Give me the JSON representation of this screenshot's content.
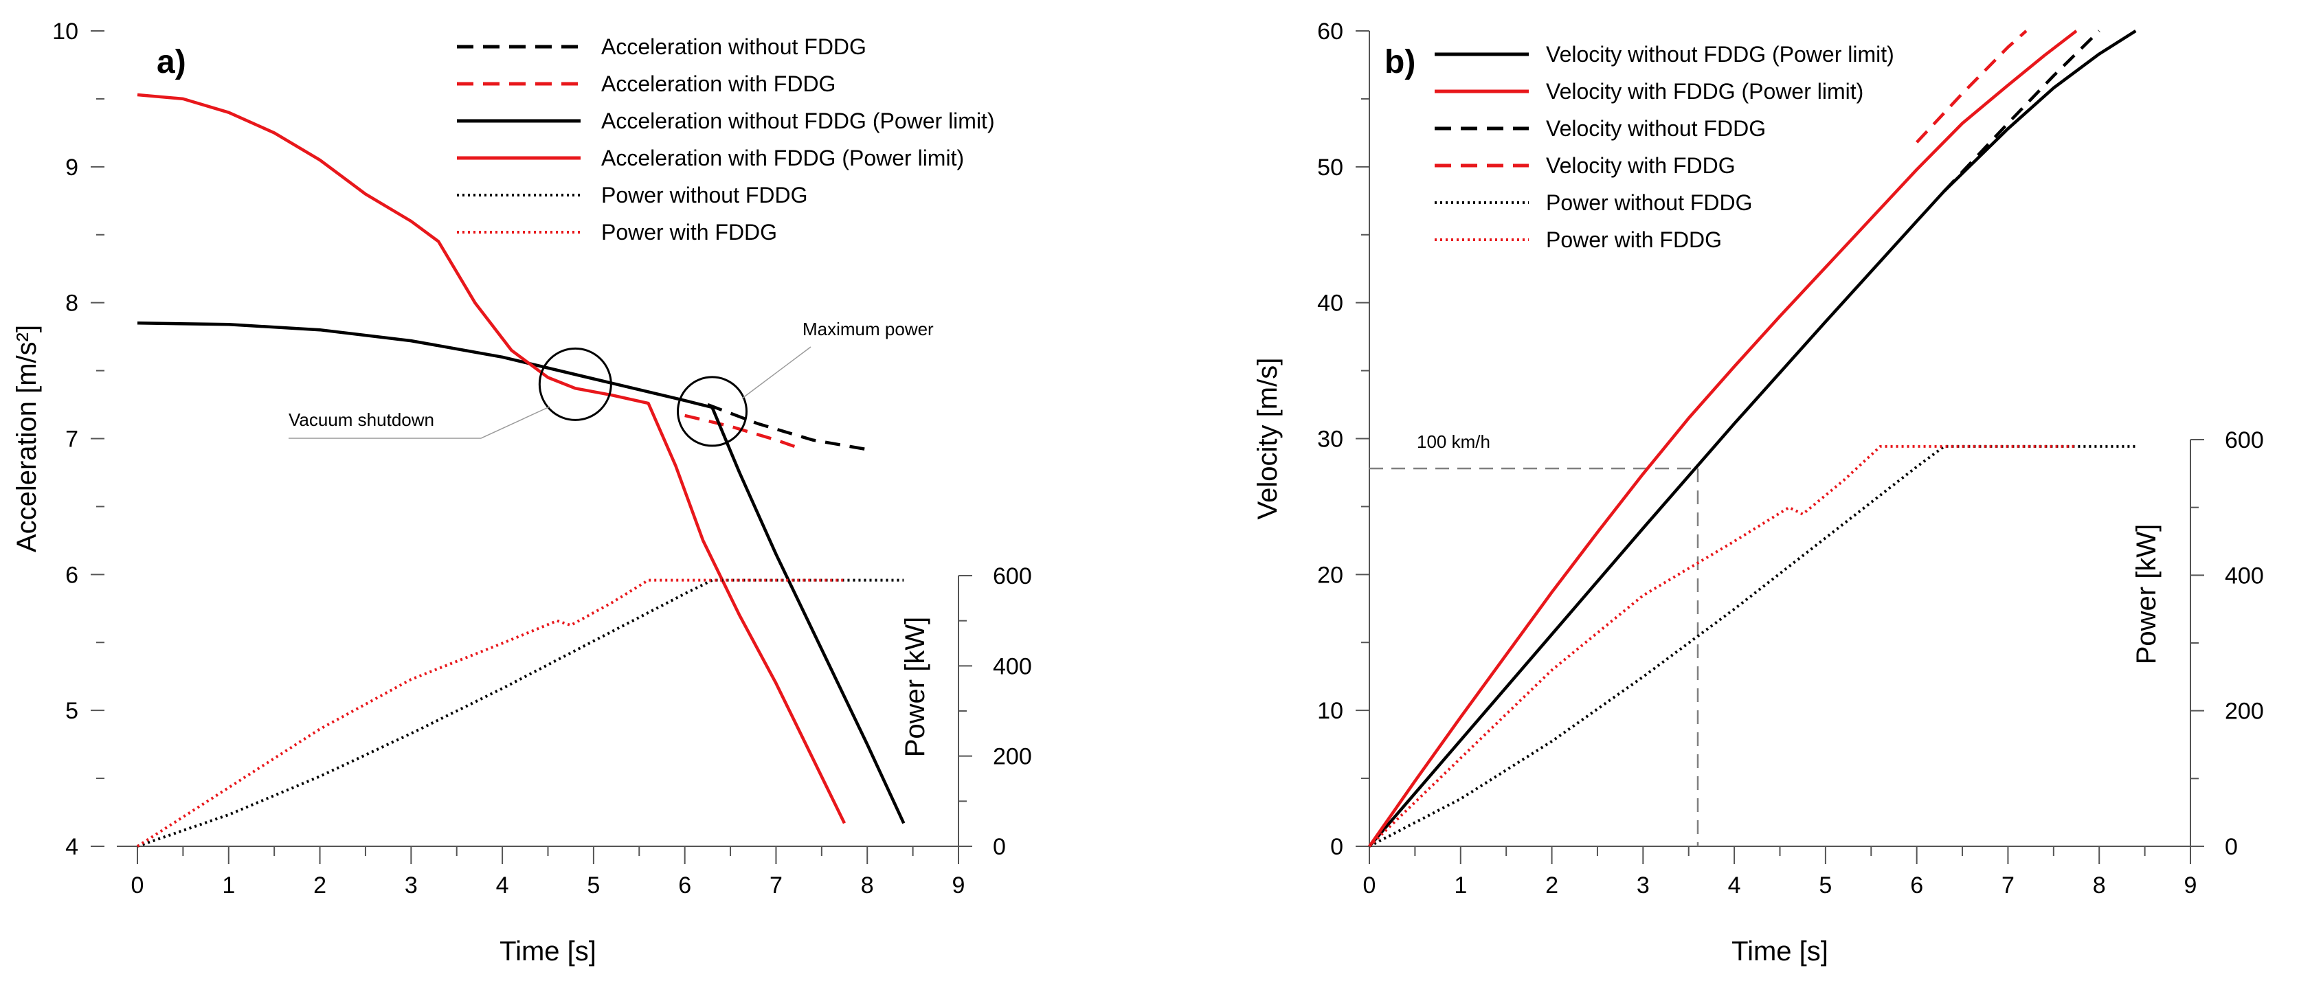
{
  "colors": {
    "black": "#000000",
    "red": "#e8171b",
    "guide": "#808080"
  },
  "chart_data": [
    {
      "id": "a",
      "type": "line",
      "panel_label": "a)",
      "xlabel": "Time [s]",
      "ylabel": "Acceleration [m/s²]",
      "y2label": "Power [kW]",
      "xlim": [
        0,
        9
      ],
      "ylim": [
        4,
        10
      ],
      "y2lim": [
        0,
        600
      ],
      "xticks": [
        "0",
        "1",
        "2",
        "3",
        "4",
        "5",
        "6",
        "7",
        "8",
        "9"
      ],
      "yticks": [
        "4",
        "5",
        "6",
        "7",
        "8",
        "9",
        "10"
      ],
      "y2ticks": [
        "0",
        "200",
        "400",
        "600"
      ],
      "legend_position": "top-right",
      "legend": [
        {
          "label": "Acceleration without FDDG",
          "color": "black",
          "style": "dashed"
        },
        {
          "label": "Acceleration with FDDG",
          "color": "red",
          "style": "dashed"
        },
        {
          "label": "Acceleration without FDDG (Power limit)",
          "color": "black",
          "style": "solid"
        },
        {
          "label": "Acceleration with FDDG (Power limit)",
          "color": "red",
          "style": "solid"
        },
        {
          "label": "Power without FDDG",
          "color": "black",
          "style": "dotted"
        },
        {
          "label": "Power with FDDG",
          "color": "red",
          "style": "dotted"
        }
      ],
      "annotations": [
        {
          "text": "Vacuum shutdown",
          "circle_at": [
            4.8,
            7.4
          ]
        },
        {
          "text": "Maximum power",
          "circle_at": [
            6.3,
            7.2
          ]
        }
      ],
      "series": [
        {
          "name": "Acceleration without FDDG",
          "color": "black",
          "style": "dashed",
          "axis": "left",
          "points": [
            [
              6.25,
              7.25
            ],
            [
              6.8,
              7.11
            ],
            [
              7.4,
              6.99
            ],
            [
              8.0,
              6.92
            ]
          ]
        },
        {
          "name": "Acceleration with FDDG",
          "color": "red",
          "style": "dashed",
          "axis": "left",
          "points": [
            [
              6.0,
              7.17
            ],
            [
              6.5,
              7.09
            ],
            [
              7.0,
              6.99
            ],
            [
              7.3,
              6.92
            ]
          ]
        },
        {
          "name": "Acceleration without FDDG (Power limit)",
          "color": "black",
          "style": "solid",
          "axis": "left",
          "points": [
            [
              0,
              7.85
            ],
            [
              1,
              7.84
            ],
            [
              2,
              7.8
            ],
            [
              3,
              7.72
            ],
            [
              4,
              7.6
            ],
            [
              5,
              7.44
            ],
            [
              6,
              7.28
            ],
            [
              6.3,
              7.23
            ],
            [
              6.6,
              6.75
            ],
            [
              7.0,
              6.15
            ],
            [
              7.5,
              5.45
            ],
            [
              8.0,
              4.75
            ],
            [
              8.4,
              4.17
            ]
          ]
        },
        {
          "name": "Acceleration with FDDG (Power limit)",
          "color": "red",
          "style": "solid",
          "axis": "left",
          "points": [
            [
              0,
              9.53
            ],
            [
              0.5,
              9.5
            ],
            [
              1,
              9.4
            ],
            [
              1.5,
              9.25
            ],
            [
              2,
              9.05
            ],
            [
              2.5,
              8.8
            ],
            [
              3,
              8.6
            ],
            [
              3.3,
              8.45
            ],
            [
              3.7,
              8.0
            ],
            [
              4.1,
              7.65
            ],
            [
              4.5,
              7.45
            ],
            [
              4.8,
              7.37
            ],
            [
              5.2,
              7.32
            ],
            [
              5.6,
              7.26
            ],
            [
              5.9,
              6.8
            ],
            [
              6.2,
              6.25
            ],
            [
              6.6,
              5.7
            ],
            [
              7.0,
              5.2
            ],
            [
              7.4,
              4.65
            ],
            [
              7.75,
              4.17
            ]
          ]
        },
        {
          "name": "Power without FDDG",
          "color": "black",
          "style": "dotted",
          "axis": "right",
          "points": [
            [
              0,
              0
            ],
            [
              1,
              70
            ],
            [
              2,
              155
            ],
            [
              3,
              250
            ],
            [
              4,
              350
            ],
            [
              5,
              455
            ],
            [
              6,
              560
            ],
            [
              6.3,
              590
            ],
            [
              8.4,
              590
            ]
          ]
        },
        {
          "name": "Power with FDDG",
          "color": "red",
          "style": "dotted",
          "axis": "right",
          "points": [
            [
              0,
              0
            ],
            [
              1,
              130
            ],
            [
              2,
              260
            ],
            [
              3,
              370
            ],
            [
              4,
              450
            ],
            [
              4.6,
              500
            ],
            [
              4.75,
              490
            ],
            [
              5.2,
              540
            ],
            [
              5.6,
              590
            ],
            [
              7.75,
              590
            ]
          ]
        }
      ]
    },
    {
      "id": "b",
      "type": "line",
      "panel_label": "b)",
      "xlabel": "Time [s]",
      "ylabel": "Velocity [m/s]",
      "y2label": "Power [kW]",
      "xlim": [
        0,
        9
      ],
      "ylim": [
        0,
        60
      ],
      "y2lim": [
        0,
        600
      ],
      "xticks": [
        "0",
        "1",
        "2",
        "3",
        "4",
        "5",
        "6",
        "7",
        "8",
        "9"
      ],
      "yticks": [
        "0",
        "10",
        "20",
        "30",
        "40",
        "50",
        "60"
      ],
      "y2ticks": [
        "0",
        "200",
        "400",
        "600"
      ],
      "legend_position": "top-left",
      "legend": [
        {
          "label": "Velocity without FDDG (Power limit)",
          "color": "black",
          "style": "solid"
        },
        {
          "label": "Velocity with FDDG (Power limit)",
          "color": "red",
          "style": "solid"
        },
        {
          "label": "Velocity without FDDG",
          "color": "black",
          "style": "dashed"
        },
        {
          "label": "Velocity with FDDG",
          "color": "red",
          "style": "dashed"
        },
        {
          "label": "Power without FDDG",
          "color": "black",
          "style": "dotted"
        },
        {
          "label": "Power with FDDG",
          "color": "red",
          "style": "dotted"
        }
      ],
      "annotations": [
        {
          "text": "100 km/h",
          "guide_at": [
            3.6,
            27.8
          ]
        }
      ],
      "series": [
        {
          "name": "Velocity without FDDG (Power limit)",
          "color": "black",
          "style": "solid",
          "axis": "left",
          "points": [
            [
              0,
              0
            ],
            [
              1,
              7.8
            ],
            [
              2,
              15.6
            ],
            [
              3,
              23.4
            ],
            [
              4,
              31.1
            ],
            [
              5,
              38.6
            ],
            [
              6,
              46.0
            ],
            [
              6.3,
              48.2
            ],
            [
              7,
              52.8
            ],
            [
              7.5,
              55.8
            ],
            [
              8,
              58.3
            ],
            [
              8.4,
              60
            ]
          ]
        },
        {
          "name": "Velocity with FDDG (Power limit)",
          "color": "red",
          "style": "solid",
          "axis": "left",
          "points": [
            [
              0,
              0
            ],
            [
              0.5,
              4.8
            ],
            [
              1,
              9.5
            ],
            [
              1.5,
              14.1
            ],
            [
              2,
              18.7
            ],
            [
              2.5,
              23.1
            ],
            [
              3,
              27.4
            ],
            [
              3.5,
              31.5
            ],
            [
              4,
              35.3
            ],
            [
              4.5,
              39.0
            ],
            [
              5,
              42.6
            ],
            [
              5.5,
              46.2
            ],
            [
              6,
              49.8
            ],
            [
              6.5,
              53.2
            ],
            [
              7,
              56.0
            ],
            [
              7.4,
              58.2
            ],
            [
              7.75,
              60
            ]
          ]
        },
        {
          "name": "Velocity without FDDG",
          "color": "black",
          "style": "dashed",
          "axis": "left",
          "points": [
            [
              6.3,
              48.2
            ],
            [
              7,
              53.2
            ],
            [
              7.5,
              56.7
            ],
            [
              8.0,
              60
            ]
          ]
        },
        {
          "name": "Velocity with FDDG",
          "color": "red",
          "style": "dashed",
          "axis": "left",
          "points": [
            [
              6.0,
              51.8
            ],
            [
              6.5,
              55.4
            ],
            [
              7.0,
              58.8
            ],
            [
              7.2,
              60
            ]
          ]
        },
        {
          "name": "Power without FDDG",
          "color": "black",
          "style": "dotted",
          "axis": "right",
          "points": [
            [
              0,
              0
            ],
            [
              1,
              70
            ],
            [
              2,
              155
            ],
            [
              3,
              250
            ],
            [
              4,
              350
            ],
            [
              5,
              455
            ],
            [
              6,
              560
            ],
            [
              6.3,
              590
            ],
            [
              8.4,
              590
            ]
          ]
        },
        {
          "name": "Power with FDDG",
          "color": "red",
          "style": "dotted",
          "axis": "right",
          "points": [
            [
              0,
              0
            ],
            [
              1,
              130
            ],
            [
              2,
              260
            ],
            [
              3,
              370
            ],
            [
              4,
              450
            ],
            [
              4.6,
              500
            ],
            [
              4.75,
              490
            ],
            [
              5.2,
              540
            ],
            [
              5.6,
              590
            ],
            [
              7.75,
              590
            ]
          ]
        }
      ]
    }
  ]
}
